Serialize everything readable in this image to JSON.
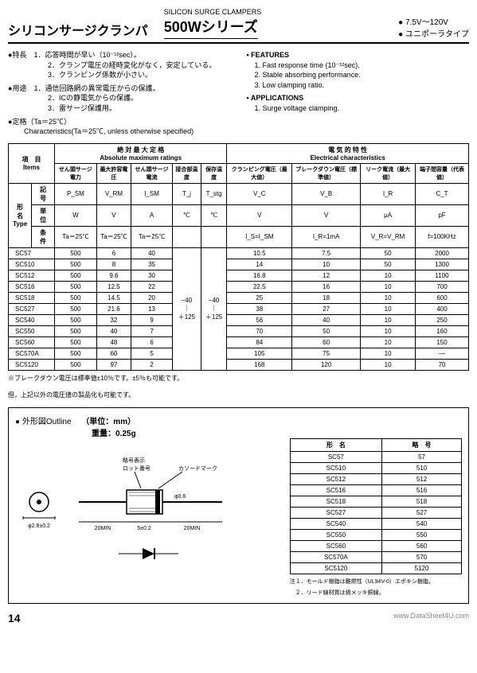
{
  "header": {
    "titleJp": "シリコンサージクランパ",
    "subtitleEn": "SILICON SURGE CLAMPERS",
    "series": "500Wシリーズ",
    "rightLines": [
      "7.5V～120V",
      "ユニポーラタイプ"
    ]
  },
  "intro": {
    "tokuchoLabel": "特長",
    "tokuchoItems": [
      "1．応答時間が早い（10⁻¹²sec）。",
      "2．クランプ電圧の経時変化がなく，安定している。",
      "3．クランピング係数が小さい。"
    ],
    "youtoLabel": "用途",
    "youtoItems": [
      "1．通信回路網の異常電圧からの保護。",
      "2．ICの静電気からの保護。",
      "3．雷サージ保護用。"
    ],
    "teikakuLabel": "定格",
    "teikakuCond": "（Ta＝25℃）",
    "charLine": "Characteristics(Ta＝25℃, unless otherwise specified)",
    "featuresTitle": "FEATURES",
    "featuresItems": [
      "1. Fast response time (10⁻¹²sec).",
      "2. Stable absorbing performance.",
      "3. Low clamping ratio."
    ],
    "appsTitle": "APPLICATIONS",
    "appsItems": [
      "1. Surge voltage clamping."
    ]
  },
  "table": {
    "groupHeaders": {
      "items": "項　目\nItems",
      "abs": "絶 対 最 大 定 格\nAbsolute maximum ratings",
      "elec": "電 気 的 特 性\nElectrical characteristics"
    },
    "colHeadersJp": [
      "せん頭サージ電力",
      "最大許容電圧",
      "せん頭サージ電流",
      "接合部温度",
      "保存温度",
      "クランピング電圧（最大値）",
      "ブレークダウン電圧（標準値）",
      "リーク電流（最大値）",
      "端子間容量（代表値）"
    ],
    "symbols": [
      "P_SM",
      "V_RM",
      "I_SM",
      "T_j",
      "T_stg",
      "V_C",
      "V_B",
      "I_R",
      "C_T"
    ],
    "units": [
      "W",
      "V",
      "A",
      "℃",
      "℃",
      "V",
      "V",
      "μA",
      "pF"
    ],
    "conditions": [
      "Ta＝25℃",
      "Ta＝25℃",
      "Ta＝25℃",
      "",
      "",
      "I_S=I_SM",
      "I_R=1mA",
      "V_R=V_RM",
      "f=100KHz"
    ],
    "typeLabel": "形　名\nType",
    "sideLabels": {
      "kigo": "記　号",
      "tani": "単　位",
      "joken": "条　件"
    },
    "tjRange": "−40\n｜\n＋125",
    "tstgRange": "−40\n｜\n＋125",
    "rows": [
      {
        "type": "SC57",
        "psm": "500",
        "vrm": "6",
        "ism": "40",
        "vc": "10.5",
        "vb": "7.5",
        "ir": "50",
        "ct": "2000"
      },
      {
        "type": "SC510",
        "psm": "500",
        "vrm": "8",
        "ism": "35",
        "vc": "14",
        "vb": "10",
        "ir": "50",
        "ct": "1300"
      },
      {
        "type": "SC512",
        "psm": "500",
        "vrm": "9.6",
        "ism": "30",
        "vc": "16.8",
        "vb": "12",
        "ir": "10",
        "ct": "1100"
      },
      {
        "type": "SC516",
        "psm": "500",
        "vrm": "12.5",
        "ism": "22",
        "vc": "22.5",
        "vb": "16",
        "ir": "10",
        "ct": "700"
      },
      {
        "type": "SC518",
        "psm": "500",
        "vrm": "14.5",
        "ism": "20",
        "vc": "25",
        "vb": "18",
        "ir": "10",
        "ct": "600"
      },
      {
        "type": "SC527",
        "psm": "500",
        "vrm": "21.6",
        "ism": "13",
        "vc": "38",
        "vb": "27",
        "ir": "10",
        "ct": "400"
      },
      {
        "type": "SC540",
        "psm": "500",
        "vrm": "32",
        "ism": "9",
        "vc": "56",
        "vb": "40",
        "ir": "10",
        "ct": "250"
      },
      {
        "type": "SC550",
        "psm": "500",
        "vrm": "40",
        "ism": "7",
        "vc": "70",
        "vb": "50",
        "ir": "10",
        "ct": "160"
      },
      {
        "type": "SC560",
        "psm": "500",
        "vrm": "48",
        "ism": "6",
        "vc": "84",
        "vb": "60",
        "ir": "10",
        "ct": "150"
      },
      {
        "type": "SC570A",
        "psm": "500",
        "vrm": "60",
        "ism": "5",
        "vc": "105",
        "vb": "75",
        "ir": "10",
        "ct": "—"
      },
      {
        "type": "SC5120",
        "psm": "500",
        "vrm": "97",
        "ism": "2",
        "vc": "168",
        "vb": "120",
        "ir": "10",
        "ct": "70"
      }
    ],
    "note1": "※ブレークダウン電圧は標準値±10％です。±5％も可能です。",
    "note2": "但，上記以外の電圧値の製品化も可能です。"
  },
  "outline": {
    "title": "外形図Outline",
    "unit": "（単位：mm）",
    "weight": "重量：0.25g",
    "labels": {
      "code": "略号表示",
      "lot": "ロット番号",
      "cathode": "カソードマーク",
      "leadDia": "φ0.6",
      "bodyDia": "φ2.8±0.2",
      "bodyLen": "5±0.2",
      "leadLen": "20MIN"
    },
    "tableHeader": {
      "type": "形　名",
      "code": "略　号"
    },
    "tableRows": [
      {
        "type": "SC57",
        "code": "57"
      },
      {
        "type": "SC510",
        "code": "510"
      },
      {
        "type": "SC512",
        "code": "512"
      },
      {
        "type": "SC516",
        "code": "516"
      },
      {
        "type": "SC518",
        "code": "518"
      },
      {
        "type": "SC527",
        "code": "527"
      },
      {
        "type": "SC540",
        "code": "540"
      },
      {
        "type": "SC550",
        "code": "550"
      },
      {
        "type": "SC560",
        "code": "560"
      },
      {
        "type": "SC570A",
        "code": "570"
      },
      {
        "type": "SC5120",
        "code": "5120"
      }
    ],
    "notes": [
      "注１．モールド樹脂は難燃性（UL94V-0）エポキシ樹脂。",
      "　２．リード線材質は錫メッキ銅線。"
    ]
  },
  "footer": {
    "pageNum": "14",
    "watermark": "www.DataSheet4U.com"
  }
}
